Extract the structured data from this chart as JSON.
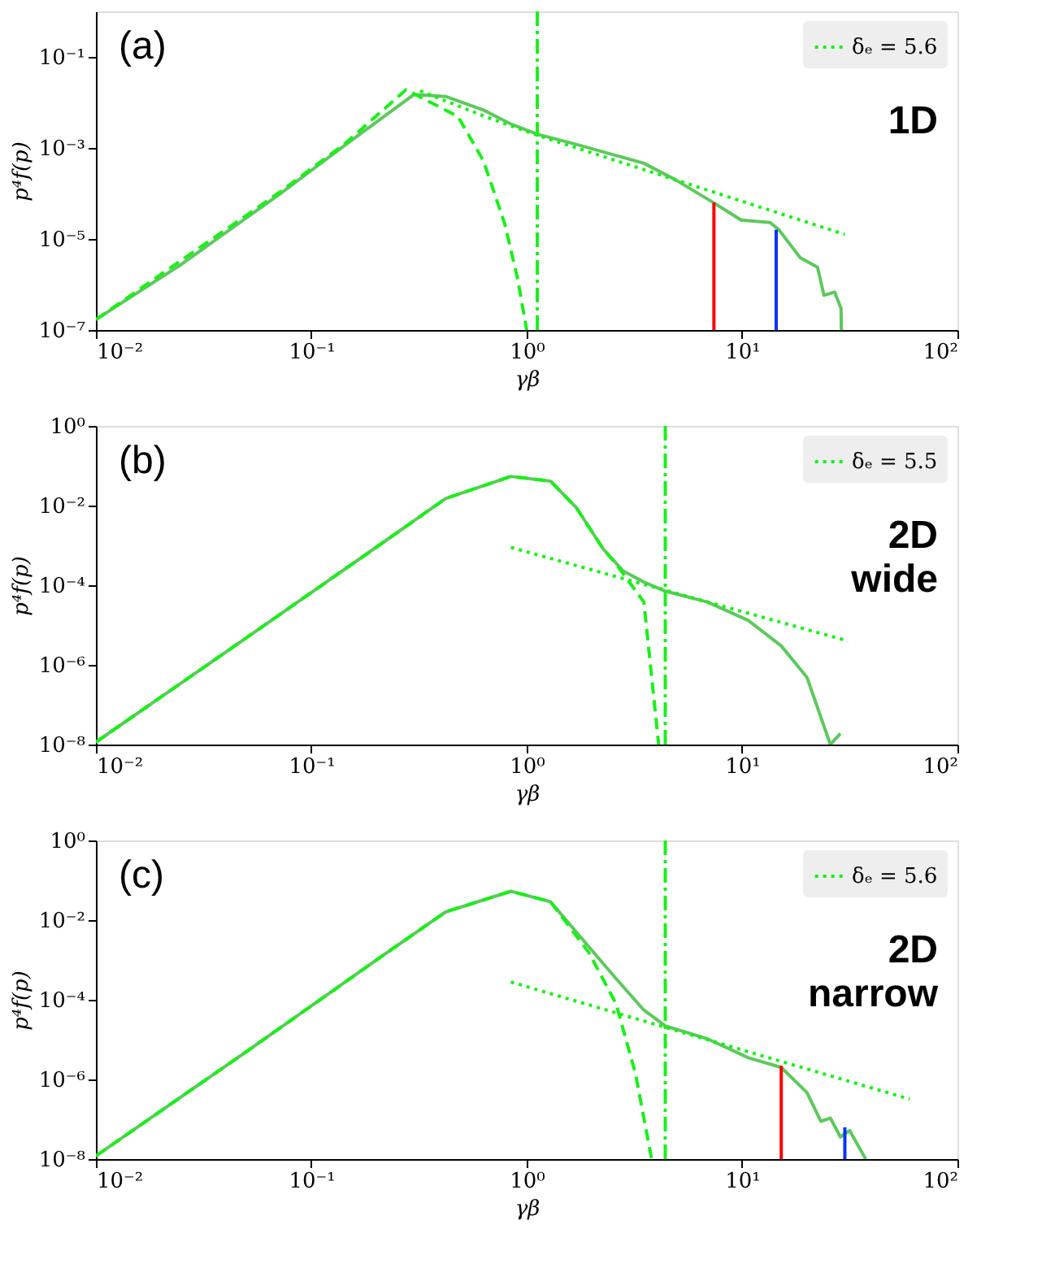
{
  "chart_data": [
    {
      "type": "line",
      "annotations": [
        "(a)",
        "1D"
      ],
      "xlabel": "γβ",
      "ylabel": "p⁴f(p)",
      "log": "xy",
      "legend": "top right",
      "marker": "none",
      "grid": false,
      "xlim": [
        0.01,
        100
      ],
      "xticks": [
        {
          "value": 0.01,
          "label": "10⁻²"
        },
        {
          "value": 0.1,
          "label": "10⁻¹"
        },
        {
          "value": 1,
          "label": "10⁰"
        },
        {
          "value": 10,
          "label": "10¹"
        },
        {
          "value": 100,
          "label": "10²"
        }
      ],
      "ylim": [
        1e-07,
        1
      ],
      "yticks": [
        {
          "value": 1e-07,
          "label": "10⁻⁷"
        },
        {
          "value": 1e-05,
          "label": "10⁻⁵"
        },
        {
          "value": 0.001,
          "label": "10⁻³"
        },
        {
          "value": 0.1,
          "label": "10⁻¹"
        }
      ],
      "ref_lines": [
        {
          "axis": "x",
          "value": 1.12,
          "color": "#1aef1a",
          "line_style": "dashdot"
        }
      ],
      "series": [
        {
          "color": "#5ec85e",
          "line_style": "solid",
          "x": [
            0.01,
            0.025,
            0.072,
            0.145,
            0.3,
            0.42,
            0.63,
            0.85,
            1.12,
            1.7,
            3.5,
            4.9,
            7.4,
            9.9,
            13.5,
            14.8,
            18.6,
            22.4,
            24,
            26.9,
            28.8,
            28.9
          ],
          "values": [
            1.7e-07,
            2.8e-06,
            0.0001,
            0.0012,
            0.015,
            0.0135,
            0.0068,
            0.0033,
            0.002,
            0.0012,
            0.00046,
            0.0002,
            6.2e-05,
            2.6e-05,
            2.3e-05,
            1.6e-05,
            3.9e-06,
            2.4e-06,
            5.8e-07,
            6.8e-07,
            3e-07,
            1e-07
          ]
        },
        {
          "color": "#1aef1a",
          "line_style": "dashed",
          "x": [
            0.01,
            0.072,
            0.145,
            0.275,
            0.48,
            0.63,
            0.79,
            0.91,
            1.0
          ],
          "values": [
            1.7e-07,
            0.00011,
            0.0013,
            0.019,
            0.0049,
            0.00052,
            2.2e-05,
            1.26e-06,
            1e-07
          ]
        },
        {
          "name": "δₑ = 5.6",
          "color": "#1aef1a",
          "line_style": "dotted",
          "x": [
            0.32,
            0.64,
            1.12,
            30
          ],
          "values": [
            0.018,
            0.0049,
            0.0019,
            1.26e-05
          ]
        },
        {
          "color": "#ff0000",
          "line_style": "solid",
          "x": [
            7.4,
            7.4
          ],
          "values": [
            1e-07,
            6.3e-05
          ]
        },
        {
          "color": "#0033ff",
          "line_style": "solid",
          "x": [
            14.4,
            14.4
          ],
          "values": [
            1e-07,
            1.6e-05
          ]
        }
      ]
    },
    {
      "type": "line",
      "annotations": [
        "(b)",
        "2D\nwide"
      ],
      "xlabel": "γβ",
      "ylabel": "p⁴f(p)",
      "log": "xy",
      "legend": "top right",
      "marker": "none",
      "grid": false,
      "xlim": [
        0.01,
        100
      ],
      "xticks": [
        {
          "value": 0.01,
          "label": "10⁻²"
        },
        {
          "value": 0.1,
          "label": "10⁻¹"
        },
        {
          "value": 1,
          "label": "10⁰"
        },
        {
          "value": 10,
          "label": "10¹"
        },
        {
          "value": 100,
          "label": "10²"
        }
      ],
      "ylim": [
        1e-08,
        1
      ],
      "yticks": [
        {
          "value": 1e-08,
          "label": "10⁻⁸"
        },
        {
          "value": 1e-06,
          "label": "10⁻⁶"
        },
        {
          "value": 0.0001,
          "label": "10⁻⁴"
        },
        {
          "value": 0.01,
          "label": "10⁻²"
        },
        {
          "value": 1,
          "label": "10⁰"
        }
      ],
      "ref_lines": [
        {
          "axis": "x",
          "value": 4.4,
          "color": "#1aef1a",
          "line_style": "dashdot"
        }
      ],
      "series": [
        {
          "color": "#5ec85e",
          "line_style": "solid",
          "x": [
            0.01,
            0.05,
            0.206,
            0.42,
            0.845,
            1.29,
            1.7,
            2.26,
            2.8,
            3.5,
            4.4,
            6.9,
            10.7,
            15.2,
            20,
            25.7,
            28.6
          ],
          "values": [
            1.15e-08,
            4.8e-06,
            0.001,
            0.015,
            0.054,
            0.041,
            0.0089,
            0.00083,
            0.00023,
            0.00012,
            7.1e-05,
            3.8e-05,
            1.3e-05,
            3e-06,
            4.9e-07,
            1e-08,
            1.9e-08
          ]
        },
        {
          "color": "#1aef1a",
          "line_style": "dashed",
          "x": [
            0.01,
            0.05,
            0.206,
            0.42,
            0.845,
            1.29,
            1.7,
            2.26,
            2.6,
            3.5,
            4.1
          ],
          "values": [
            1.15e-08,
            4.8e-06,
            0.001,
            0.015,
            0.054,
            0.041,
            0.0089,
            0.00083,
            0.00034,
            3.8e-05,
            1e-08
          ]
        },
        {
          "name": "δₑ = 5.5",
          "color": "#1aef1a",
          "line_style": "dotted",
          "x": [
            0.845,
            31
          ],
          "values": [
            0.00089,
            4e-06
          ]
        }
      ]
    },
    {
      "type": "line",
      "annotations": [
        "(c)",
        "2D\nnarrow"
      ],
      "xlabel": "γβ",
      "ylabel": "p⁴f(p)",
      "log": "xy",
      "legend": "top right",
      "marker": "none",
      "grid": false,
      "xlim": [
        0.01,
        100
      ],
      "xticks": [
        {
          "value": 0.01,
          "label": "10⁻²"
        },
        {
          "value": 0.1,
          "label": "10⁻¹"
        },
        {
          "value": 1,
          "label": "10⁰"
        },
        {
          "value": 10,
          "label": "10¹"
        },
        {
          "value": 100,
          "label": "10²"
        }
      ],
      "ylim": [
        1e-08,
        1
      ],
      "yticks": [
        {
          "value": 1e-08,
          "label": "10⁻⁸"
        },
        {
          "value": 1e-06,
          "label": "10⁻⁶"
        },
        {
          "value": 0.0001,
          "label": "10⁻⁴"
        },
        {
          "value": 0.01,
          "label": "10⁻²"
        },
        {
          "value": 1,
          "label": "10⁰"
        }
      ],
      "ref_lines": [
        {
          "axis": "x",
          "value": 4.4,
          "color": "#1aef1a",
          "line_style": "dashdot"
        }
      ],
      "series": [
        {
          "color": "#5ec85e",
          "line_style": "solid",
          "x": [
            0.01,
            0.05,
            0.206,
            0.42,
            0.845,
            1.29,
            1.95,
            2.6,
            3.5,
            4.4,
            6.9,
            10.7,
            15.2,
            20,
            23.2,
            25.7,
            28.6,
            31.6,
            37.5
          ],
          "values": [
            1.2e-08,
            5e-06,
            0.0011,
            0.016,
            0.053,
            0.029,
            0.0021,
            0.00034,
            5.5e-05,
            2.2e-05,
            1.05e-05,
            3.5e-06,
            2e-06,
            4.7e-07,
            8.9e-08,
            1.07e-07,
            3.6e-08,
            5.2e-08,
            1e-08
          ]
        },
        {
          "color": "#1aef1a",
          "line_style": "dashed",
          "x": [
            0.01,
            0.05,
            0.206,
            0.42,
            0.845,
            1.29,
            1.95,
            2.6,
            3.2,
            3.8
          ],
          "values": [
            1.2e-08,
            5e-06,
            0.0011,
            0.016,
            0.053,
            0.029,
            0.0015,
            7.9e-05,
            1.4e-06,
            1e-08
          ]
        },
        {
          "name": "δₑ = 5.6",
          "color": "#1aef1a",
          "line_style": "dotted",
          "x": [
            0.845,
            60
          ],
          "values": [
            0.00028,
            3.2e-07
          ]
        },
        {
          "color": "#ff0000",
          "line_style": "solid",
          "x": [
            15.2,
            15.2
          ],
          "values": [
            1e-08,
            2.2e-06
          ]
        },
        {
          "color": "#0033ff",
          "line_style": "solid",
          "x": [
            30,
            30
          ],
          "values": [
            1e-08,
            6.3e-08
          ]
        }
      ]
    }
  ]
}
